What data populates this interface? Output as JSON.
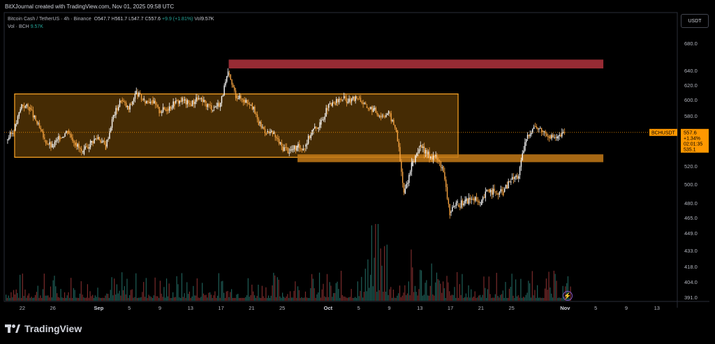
{
  "header": {
    "created_by": "BitXJournal created with TradingView.com, Nov 01, 2025 09:58 UTC"
  },
  "legend": {
    "symbol_line": "Bitcoin Cash / TetherUS · 4h · Binance",
    "open_label": "O",
    "open": "547.7",
    "high_label": "H",
    "high": "561.7",
    "low_label": "L",
    "low": "547.7",
    "close_label": "C",
    "close": "557.6",
    "change": "+9.9 (+1.81%)",
    "vol_label": "Vol",
    "vol": "9.57K",
    "volume_line": "Vol · BCH",
    "volume_value": "9.57K"
  },
  "currency_button": "USDT",
  "branding": "TradingView",
  "price_tag": {
    "symbol": "BCHUSDT",
    "price": "557.6",
    "change_pct": "+1.34%",
    "countdown": "02:01:35",
    "secondary": "535.1"
  },
  "colors": {
    "up": "#ffffff",
    "down": "#f7a440",
    "range_fill": "#5c3a06",
    "range_border": "#ffa726",
    "resistance_zone": "#b2323d",
    "support_zone": "#c47a17",
    "vol_up": "#1f5e57",
    "vol_down": "#7a2b2b",
    "price_line": "#ff9800"
  },
  "chart_data": {
    "type": "candlestick",
    "y_axis_ticks": [
      "680.0",
      "640.0",
      "620.0",
      "600.0",
      "580.0",
      "560.0",
      "540.0",
      "520.0",
      "500.0",
      "480.0",
      "465.0",
      "449.0",
      "433.0",
      "418.0",
      "404.0",
      "391.0"
    ],
    "x_axis_ticks": [
      "22",
      "26",
      "Sep",
      "5",
      "9",
      "13",
      "17",
      "21",
      "25",
      "Oct",
      "5",
      "9",
      "13",
      "17",
      "21",
      "25",
      "Nov",
      "5",
      "9",
      "13"
    ],
    "x_axis_bold": [
      "Sep",
      "Oct",
      "Nov"
    ],
    "series": [
      {
        "x": "Aug 20",
        "y": 548
      },
      {
        "x": "Aug 21",
        "y": 560
      },
      {
        "x": "Aug 22",
        "y": 594
      },
      {
        "x": "Aug 23",
        "y": 590
      },
      {
        "x": "Aug 24",
        "y": 570
      },
      {
        "x": "Aug 25",
        "y": 548
      },
      {
        "x": "Aug 26",
        "y": 540
      },
      {
        "x": "Aug 27",
        "y": 551
      },
      {
        "x": "Aug 28",
        "y": 560
      },
      {
        "x": "Aug 29",
        "y": 545
      },
      {
        "x": "Aug 30",
        "y": 532
      },
      {
        "x": "Aug 31",
        "y": 545
      },
      {
        "x": "Sep 1",
        "y": 552
      },
      {
        "x": "Sep 2",
        "y": 540
      },
      {
        "x": "Sep 3",
        "y": 580
      },
      {
        "x": "Sep 4",
        "y": 600
      },
      {
        "x": "Sep 5",
        "y": 588
      },
      {
        "x": "Sep 6",
        "y": 610
      },
      {
        "x": "Sep 7",
        "y": 598
      },
      {
        "x": "Sep 8",
        "y": 600
      },
      {
        "x": "Sep 9",
        "y": 586
      },
      {
        "x": "Sep 10",
        "y": 589
      },
      {
        "x": "Sep 11",
        "y": 596
      },
      {
        "x": "Sep 12",
        "y": 600
      },
      {
        "x": "Sep 13",
        "y": 594
      },
      {
        "x": "Sep 14",
        "y": 602
      },
      {
        "x": "Sep 15",
        "y": 595
      },
      {
        "x": "Sep 16",
        "y": 590
      },
      {
        "x": "Sep 17",
        "y": 596
      },
      {
        "x": "Sep 18",
        "y": 636
      },
      {
        "x": "Sep 19",
        "y": 606
      },
      {
        "x": "Sep 20",
        "y": 600
      },
      {
        "x": "Sep 21",
        "y": 596
      },
      {
        "x": "Sep 22",
        "y": 570
      },
      {
        "x": "Sep 23",
        "y": 558
      },
      {
        "x": "Sep 24",
        "y": 555
      },
      {
        "x": "Sep 25",
        "y": 540
      },
      {
        "x": "Sep 26",
        "y": 536
      },
      {
        "x": "Sep 27",
        "y": 539
      },
      {
        "x": "Sep 28",
        "y": 540
      },
      {
        "x": "Sep 29",
        "y": 560
      },
      {
        "x": "Sep 30",
        "y": 568
      },
      {
        "x": "Oct 1",
        "y": 590
      },
      {
        "x": "Oct 2",
        "y": 596
      },
      {
        "x": "Oct 3",
        "y": 602
      },
      {
        "x": "Oct 4",
        "y": 598
      },
      {
        "x": "Oct 5",
        "y": 604
      },
      {
        "x": "Oct 6",
        "y": 592
      },
      {
        "x": "Oct 7",
        "y": 588
      },
      {
        "x": "Oct 8",
        "y": 580
      },
      {
        "x": "Oct 9",
        "y": 584
      },
      {
        "x": "Oct 10",
        "y": 560
      },
      {
        "x": "Oct 11",
        "y": 490
      },
      {
        "x": "Oct 12",
        "y": 520
      },
      {
        "x": "Oct 13",
        "y": 540
      },
      {
        "x": "Oct 14",
        "y": 532
      },
      {
        "x": "Oct 15",
        "y": 530
      },
      {
        "x": "Oct 16",
        "y": 520
      },
      {
        "x": "Oct 17",
        "y": 470
      },
      {
        "x": "Oct 18",
        "y": 478
      },
      {
        "x": "Oct 19",
        "y": 482
      },
      {
        "x": "Oct 20",
        "y": 485
      },
      {
        "x": "Oct 21",
        "y": 478
      },
      {
        "x": "Oct 22",
        "y": 495
      },
      {
        "x": "Oct 23",
        "y": 490
      },
      {
        "x": "Oct 24",
        "y": 492
      },
      {
        "x": "Oct 25",
        "y": 505
      },
      {
        "x": "Oct 26",
        "y": 510
      },
      {
        "x": "Oct 27",
        "y": 550
      },
      {
        "x": "Oct 28",
        "y": 566
      },
      {
        "x": "Oct 29",
        "y": 560
      },
      {
        "x": "Oct 30",
        "y": 554
      },
      {
        "x": "Oct 31",
        "y": 550
      },
      {
        "x": "Nov 1",
        "y": 557.6
      }
    ],
    "zones": [
      {
        "name": "resistance",
        "x_start": "Sep 18",
        "x_end": "Nov 6",
        "y_low": 643,
        "y_high": 656
      },
      {
        "name": "range",
        "x_start": "Aug 21",
        "x_end": "Oct 18",
        "y_low": 529,
        "y_high": 608
      },
      {
        "name": "support",
        "x_start": "Sep 27",
        "x_end": "Nov 6",
        "y_low": 524,
        "y_high": 532
      }
    ],
    "last_price": 557.6
  }
}
